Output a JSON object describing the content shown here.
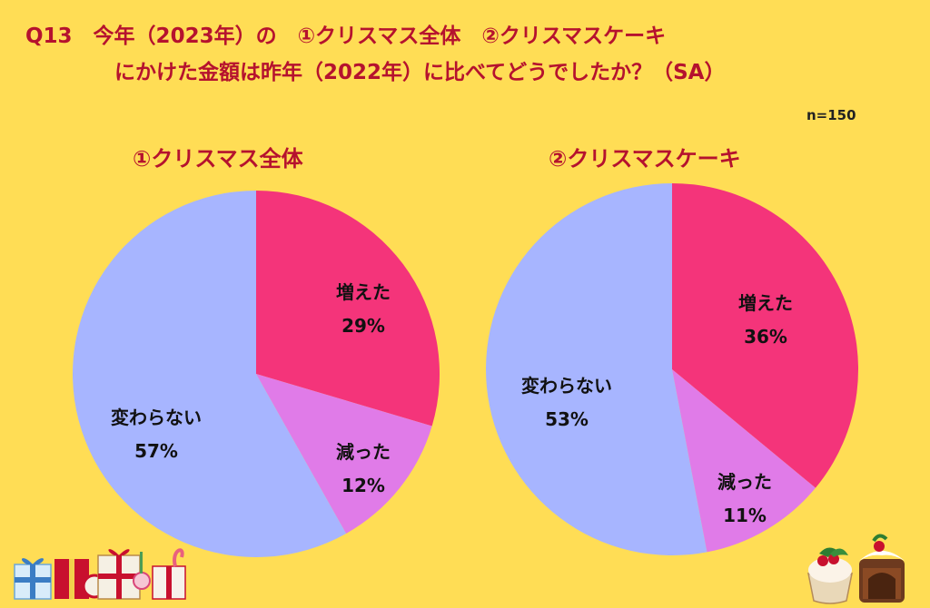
{
  "header": {
    "title_line1": "Q13　今年（2023年）の　①クリスマス全体　②クリスマスケーキ",
    "title_line2": "にかけた金額は昨年（2022年）に比べてどうでしたか？（SA）",
    "sample_size": "n=150"
  },
  "colors": {
    "increased": "#F4347A",
    "decreased": "#E07BE8",
    "unchanged": "#A7B5FF",
    "background": "#FFDD55",
    "title": "#B5122E"
  },
  "chart_data": [
    {
      "type": "pie",
      "title": "①クリスマス全体",
      "categories": [
        "増えた",
        "減った",
        "変わらない"
      ],
      "values": [
        29,
        12,
        57
      ],
      "value_labels": [
        "29%",
        "12%",
        "57%"
      ]
    },
    {
      "type": "pie",
      "title": "②クリスマスケーキ",
      "categories": [
        "増えた",
        "減った",
        "変わらない"
      ],
      "values": [
        36,
        11,
        53
      ],
      "value_labels": [
        "36%",
        "11%",
        "53%"
      ]
    }
  ],
  "decorations": {
    "left_icon": "gift-boxes-icon",
    "right_icon": "christmas-cake-icon"
  }
}
